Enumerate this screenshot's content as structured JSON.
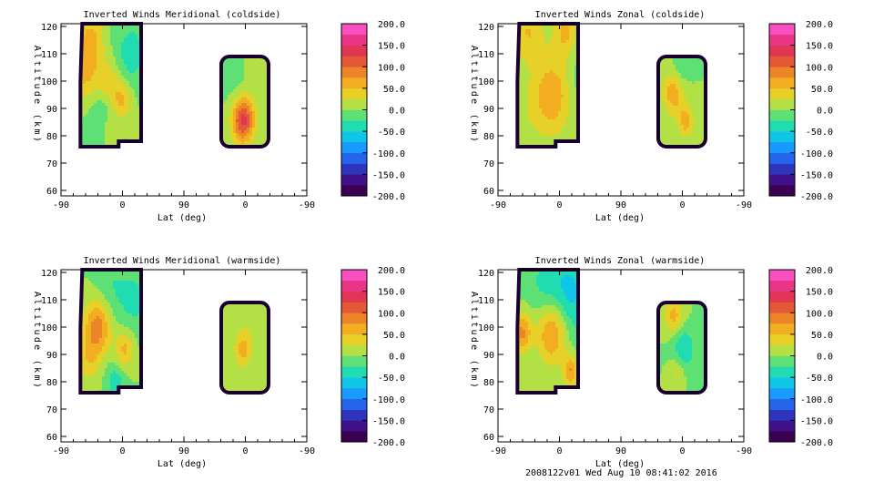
{
  "chart_data": [
    {
      "type": "heatmap",
      "title": "Inverted Winds Meridional (coldside)",
      "xlabel": "Lat (deg)",
      "ylabel": "Altitude (km)",
      "x_ticks": [
        "-90",
        "0",
        "90",
        "0",
        "-90"
      ],
      "y_ticks": [
        "60",
        "70",
        "80",
        "90",
        "100",
        "110",
        "120"
      ],
      "ylim": [
        58,
        121
      ],
      "colorbar": {
        "min": -200,
        "max": 200,
        "step": 25,
        "tick_labels": [
          "200.0",
          "150.0",
          "100.0",
          "50.0",
          "0.0",
          "-50.0",
          "-100.0",
          "-150.0",
          "-200.0"
        ]
      },
      "blobs": [
        {
          "x": -50,
          "y": 104,
          "value": 60,
          "spread": 9
        },
        {
          "x": -10,
          "y": 99,
          "value": 40,
          "spread": 6
        },
        {
          "x": 10,
          "y": 93,
          "value": 55,
          "spread": 5
        },
        {
          "x": -25,
          "y": 88,
          "value": -30,
          "spread": 8
        },
        {
          "x": -40,
          "y": 116,
          "value": 45,
          "spread": 6
        },
        {
          "x": 25,
          "y": 110,
          "value": -40,
          "spread": 8
        },
        {
          "x": -10,
          "y": 82,
          "value": 30,
          "spread": 4
        },
        {
          "x": 210,
          "y": 86,
          "value": 140,
          "spread": 6
        },
        {
          "x": 205,
          "y": 98,
          "value": -20,
          "spread": 8
        },
        {
          "x": 225,
          "y": 102,
          "value": 20,
          "spread": 6
        }
      ]
    },
    {
      "type": "heatmap",
      "title": "Inverted Winds Zonal (coldside)",
      "xlabel": "Lat (deg)",
      "ylabel": "Altitude (km)",
      "x_ticks": [
        "-90",
        "0",
        "90",
        "0",
        "-90"
      ],
      "y_ticks": [
        "60",
        "70",
        "80",
        "90",
        "100",
        "110",
        "120"
      ],
      "ylim": [
        58,
        121
      ],
      "colorbar": {
        "min": -200,
        "max": 200,
        "step": 25,
        "tick_labels": [
          "200.0",
          "150.0",
          "100.0",
          "50.0",
          "0.0",
          "-50.0",
          "-100.0",
          "-150.0",
          "-200.0"
        ]
      },
      "blobs": [
        {
          "x": 0,
          "y": 95,
          "value": 70,
          "spread": 10
        },
        {
          "x": -40,
          "y": 118,
          "value": 50,
          "spread": 8
        },
        {
          "x": 20,
          "y": 118,
          "value": 55,
          "spread": 6
        },
        {
          "x": -40,
          "y": 88,
          "value": 15,
          "spread": 10
        },
        {
          "x": 40,
          "y": 100,
          "value": -15,
          "spread": 8
        },
        {
          "x": 200,
          "y": 96,
          "value": 70,
          "spread": 6
        },
        {
          "x": 220,
          "y": 85,
          "value": 60,
          "spread": 4
        },
        {
          "x": 210,
          "y": 103,
          "value": -30,
          "spread": 5
        }
      ]
    },
    {
      "type": "heatmap",
      "title": "Inverted Winds Meridional (warmside)",
      "xlabel": "Lat (deg)",
      "ylabel": "Altitude (km)",
      "x_ticks": [
        "-90",
        "0",
        "90",
        "0",
        "-90"
      ],
      "y_ticks": [
        "60",
        "70",
        "80",
        "90",
        "100",
        "110",
        "120"
      ],
      "ylim": [
        58,
        121
      ],
      "colorbar": {
        "min": -200,
        "max": 200,
        "step": 25,
        "tick_labels": [
          "200.0",
          "150.0",
          "100.0",
          "50.0",
          "0.0",
          "-50.0",
          "-100.0",
          "-150.0",
          "-200.0"
        ]
      },
      "blobs": [
        {
          "x": -30,
          "y": 100,
          "value": 90,
          "spread": 7
        },
        {
          "x": 15,
          "y": 92,
          "value": 60,
          "spread": 5
        },
        {
          "x": -45,
          "y": 88,
          "value": 40,
          "spread": 6
        },
        {
          "x": 30,
          "y": 110,
          "value": -30,
          "spread": 10
        },
        {
          "x": -10,
          "y": 115,
          "value": -20,
          "spread": 8
        },
        {
          "x": 0,
          "y": 80,
          "value": -40,
          "spread": 5
        },
        {
          "x": 210,
          "y": 92,
          "value": 60,
          "spread": 5
        },
        {
          "x": 220,
          "y": 102,
          "value": 10,
          "spread": 5
        }
      ]
    },
    {
      "type": "heatmap",
      "title": "Inverted Winds Zonal (warmside)",
      "xlabel": "Lat (deg)",
      "ylabel": "Altitude (km)",
      "x_ticks": [
        "-90",
        "0",
        "90",
        "0",
        "-90"
      ],
      "y_ticks": [
        "60",
        "70",
        "80",
        "90",
        "100",
        "110",
        "120"
      ],
      "ylim": [
        58,
        121
      ],
      "colorbar": {
        "min": -200,
        "max": 200,
        "step": 25,
        "tick_labels": [
          "200.0",
          "150.0",
          "100.0",
          "50.0",
          "0.0",
          "-50.0",
          "-100.0",
          "-150.0",
          "-200.0"
        ]
      },
      "blobs": [
        {
          "x": 0,
          "y": 98,
          "value": 90,
          "spread": 8
        },
        {
          "x": -50,
          "y": 98,
          "value": 80,
          "spread": 5
        },
        {
          "x": 30,
          "y": 84,
          "value": 75,
          "spread": 4
        },
        {
          "x": 25,
          "y": 112,
          "value": -60,
          "spread": 12
        },
        {
          "x": -20,
          "y": 116,
          "value": -20,
          "spread": 8
        },
        {
          "x": 200,
          "y": 104,
          "value": 60,
          "spread": 5
        },
        {
          "x": 215,
          "y": 92,
          "value": -50,
          "spread": 6
        },
        {
          "x": 205,
          "y": 84,
          "value": 40,
          "spread": 4
        }
      ]
    }
  ],
  "footer": "2008122v01 Wed Aug 10 08:41:02 2016"
}
